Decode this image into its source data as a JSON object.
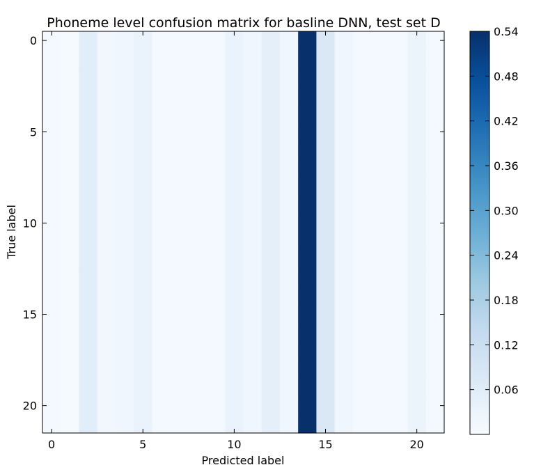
{
  "chart_data": {
    "type": "heatmap",
    "title": "Phoneme level confusion matrix for basline DNN, test set D",
    "xlabel": "Predicted label",
    "ylabel": "True label",
    "x_ticks": [
      "0",
      "5",
      "10",
      "15",
      "20"
    ],
    "y_ticks": [
      "0",
      "5",
      "10",
      "15",
      "20"
    ],
    "x_range": [
      -0.5,
      21.5
    ],
    "y_range": [
      -0.5,
      21.5
    ],
    "rows": 22,
    "cols": 22,
    "colormap": "Blues",
    "colorbar": {
      "min": 0.0,
      "max": 0.54,
      "ticks": [
        "0.06",
        "0.12",
        "0.18",
        "0.24",
        "0.30",
        "0.36",
        "0.42",
        "0.48",
        "0.54"
      ]
    },
    "column_means": [
      0.01,
      0.005,
      0.06,
      0.015,
      0.02,
      0.035,
      0.01,
      0.01,
      0.01,
      0.01,
      0.035,
      0.02,
      0.05,
      0.02,
      0.54,
      0.08,
      0.02,
      0.01,
      0.01,
      0.01,
      0.03,
      0.01
    ]
  }
}
